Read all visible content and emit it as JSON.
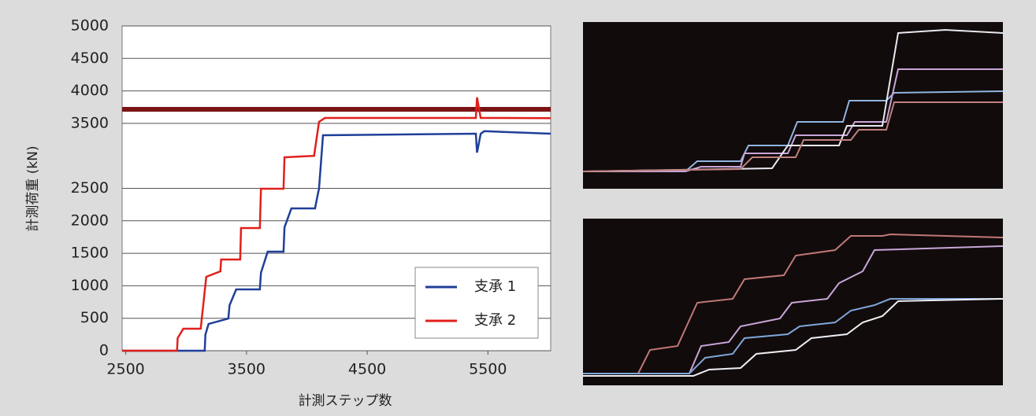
{
  "chart_data": {
    "type": "line",
    "x_label": "計測ステップ数",
    "y_label": "計測荷重 (kN)",
    "xlim": [
      2470,
      6020
    ],
    "ylim": [
      0,
      5000
    ],
    "xticks": [
      2500,
      3500,
      4500,
      5500
    ],
    "yticks": [
      0,
      500,
      1000,
      1500,
      2000,
      2500,
      3500,
      4000,
      4500,
      5000
    ],
    "grid": true,
    "legend": "lower right",
    "reference_line": 3717,
    "reference_color": "#7a1414",
    "series": [
      {
        "name": "支承 1",
        "color": "#1f3f99",
        "x": [
          2470,
          3154,
          3160,
          3186,
          3350,
          3360,
          3415,
          3611,
          3620,
          3676,
          3807,
          3815,
          3872,
          4068,
          4090,
          4101,
          4134,
          5400,
          5410,
          5440,
          5470,
          6020
        ],
        "values": [
          0,
          0,
          250,
          412,
          496,
          700,
          944,
          944,
          1200,
          1525,
          1525,
          1900,
          2191,
          2191,
          2400,
          2494,
          3317,
          3341,
          3050,
          3340,
          3380,
          3341
        ]
      },
      {
        "name": "支承 2",
        "color": "#e0201c",
        "x": [
          2470,
          2925,
          2930,
          2977,
          3121,
          3167,
          3284,
          3290,
          3448,
          3455,
          3611,
          3620,
          3807,
          3815,
          4060,
          4101,
          4150,
          5400,
          5410,
          5440,
          6020
        ],
        "values": [
          0,
          0,
          194,
          339,
          339,
          1138,
          1223,
          1404,
          1404,
          1889,
          1889,
          2494,
          2494,
          2978,
          3000,
          3523,
          3584,
          3584,
          3900,
          3584,
          3580
        ]
      }
    ]
  }
}
